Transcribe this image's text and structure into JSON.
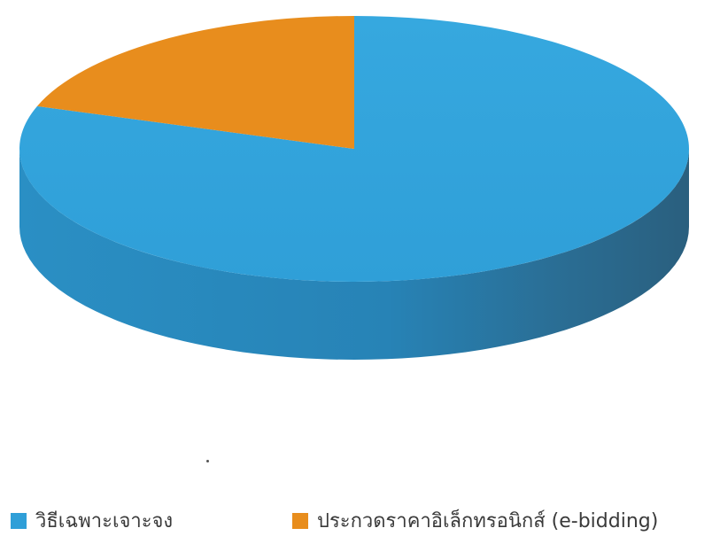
{
  "chart_data": {
    "type": "pie",
    "style": "3d",
    "categories": [
      "วิธีเฉพาะเจาะจง",
      "ประกวดราคาอิเล็กทรอนิกส์ (e-bidding)"
    ],
    "values": [
      80.2,
      19.8
    ],
    "colors": [
      "#2f9fd8",
      "#e88d1d"
    ],
    "legend_position": "bottom"
  },
  "legend": {
    "items": [
      {
        "label": "วิธีเฉพาะเจาะจง",
        "color": "#2f9fd8"
      },
      {
        "label": "ประกวดราคาอิเล็กทรอนิกส์ (e-bidding)",
        "color": "#e88d1d"
      }
    ]
  }
}
